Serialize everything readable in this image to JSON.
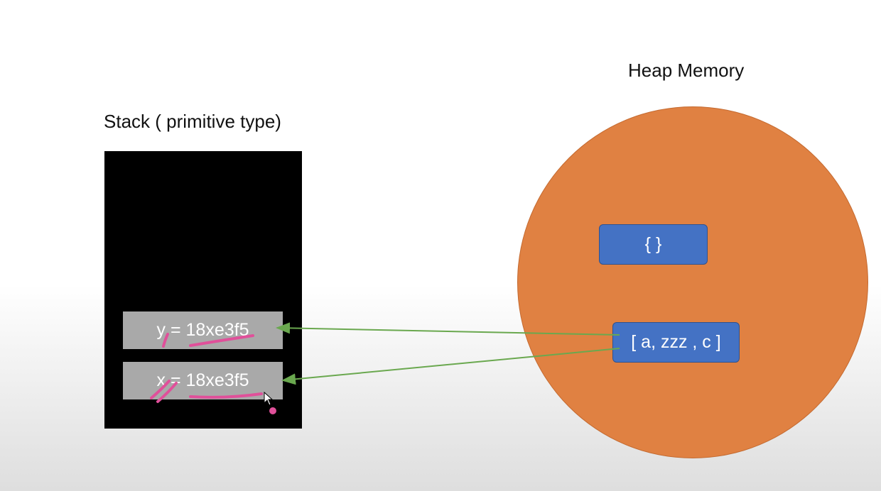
{
  "stack": {
    "title": "Stack ( primitive type)",
    "cells": [
      {
        "label": "y = 18xe3f5"
      },
      {
        "label": "x = 18xe3f5"
      }
    ]
  },
  "heap": {
    "title": "Heap Memory",
    "objects": [
      {
        "label": "{ }"
      },
      {
        "label": "[ a, zzz , c ]"
      }
    ]
  },
  "colors": {
    "stack_bg": "#000000",
    "stack_cell": "#a9a9a9",
    "heap_circle": "#e08142",
    "heap_object": "#4472c4",
    "arrow": "#6aa84f",
    "annotation": "#e0509a"
  }
}
